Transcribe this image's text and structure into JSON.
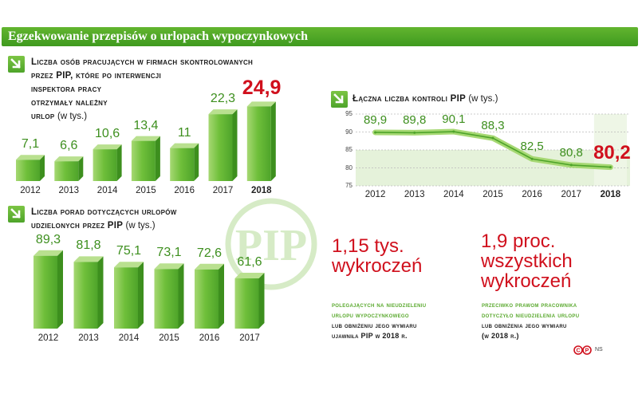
{
  "header": {
    "title": "Egzekwowanie przepisów o urlopach wypoczynkowych"
  },
  "chart_data": [
    {
      "type": "bar",
      "title_line1": "Liczba osób pracujących w firmach skontrolowanych",
      "title_line2": "przez PIP, które po interwencji",
      "title_line3": "inspektora pracy",
      "title_line4": "otrzymały należny",
      "title_line5": "urlop",
      "unit": "(w tys.)",
      "categories": [
        "2012",
        "2013",
        "2014",
        "2015",
        "2016",
        "2017",
        "2018"
      ],
      "values": [
        7.1,
        6.6,
        10.6,
        13.4,
        11,
        22.3,
        24.9
      ],
      "value_labels": [
        "7,1",
        "6,6",
        "10,6",
        "13,4",
        "11",
        "22,3",
        "24,9"
      ],
      "highlight": "2018",
      "ylim": [
        0,
        25
      ]
    },
    {
      "type": "bar",
      "title_line1": "Liczba porad dotyczących urlopów",
      "title_line2": "udzielonych przez PIP",
      "unit": "(w tys.)",
      "categories": [
        "2012",
        "2013",
        "2014",
        "2015",
        "2016",
        "2017"
      ],
      "values": [
        89.3,
        81.8,
        75.1,
        73.1,
        72.6,
        61.6
      ],
      "value_labels": [
        "89,3",
        "81,8",
        "75,1",
        "73,1",
        "72,6",
        "61,6"
      ],
      "ylim": [
        0,
        90
      ]
    },
    {
      "type": "line",
      "title": "Łączna liczba kontroli PIP",
      "unit": "(w tys.)",
      "x": [
        "2012",
        "2013",
        "2014",
        "2015",
        "2016",
        "2017",
        "2018"
      ],
      "values": [
        89.9,
        89.8,
        90.1,
        88.3,
        82.5,
        80.8,
        80.2
      ],
      "value_labels": [
        "89,9",
        "89,8",
        "90,1",
        "88,3",
        "82,5",
        "80,8",
        "80,2"
      ],
      "highlight": "2018",
      "yticks": [
        "95",
        "90",
        "85",
        "80",
        "75"
      ],
      "ylim": [
        75,
        95
      ],
      "grid": true
    }
  ],
  "stats": {
    "left": {
      "value_line1": "1,15 tys.",
      "value_line2": "wykroczeń",
      "green_line1": "polegających na nieudzieleniu",
      "green_line2": "urlopu wypoczynkowego",
      "black_line1": "lub obniżeniu jego wymiaru",
      "black_line2": "ujawniła PIP w 2018 r."
    },
    "right": {
      "value_line1": "1,9 proc.",
      "value_line2": "wszystkich",
      "value_line3": "wykroczeń",
      "green_line1": "przeciwko prawom pracownika",
      "green_line2": "dotyczyło nieudzielenia urlopu",
      "black_line1": "lub obniżenia jego wymiaru",
      "black_line2": "(w 2018 r.)"
    }
  },
  "logo": {
    "text": "PIP"
  },
  "credit": {
    "text": "NS"
  },
  "colors": {
    "green": "#5aa92e",
    "red": "#d0101d"
  }
}
